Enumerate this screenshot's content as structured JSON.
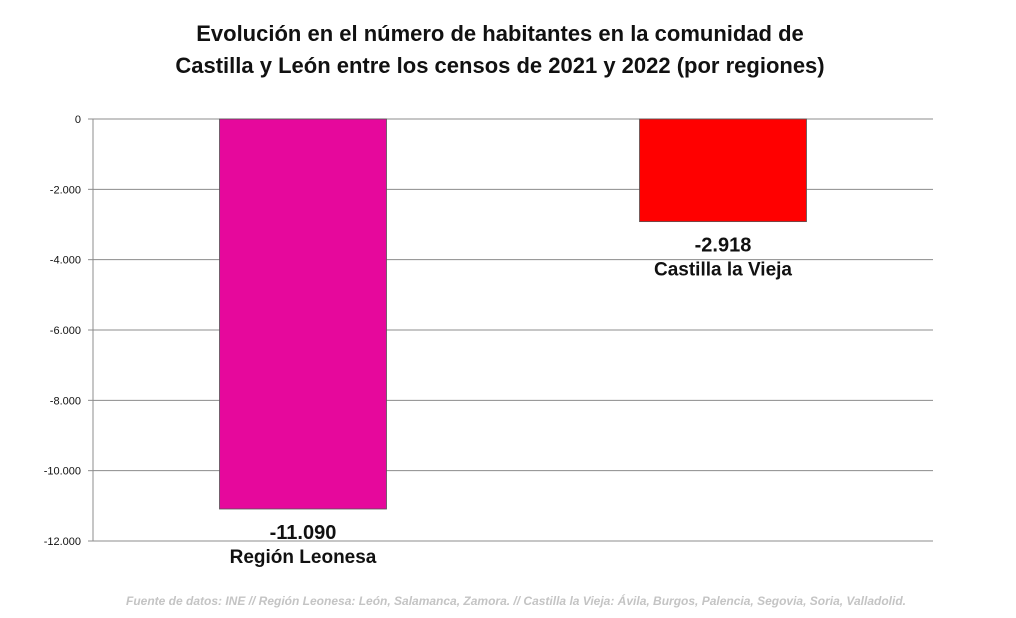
{
  "title_lines": [
    "Evolución en el número de habitantes en la comunidad de",
    "Castilla y León entre los censos de 2021 y 2022 (por regiones)"
  ],
  "source": "Fuente de datos: INE  //  Región Leonesa: León, Salamanca, Zamora.  //  Castilla la Vieja: Ávila, Burgos, Palencia, Segovia, Soria, Valladolid.",
  "chart_data": {
    "type": "bar",
    "title": "Evolución en el número de habitantes en la comunidad de Castilla y León entre los censos de 2021 y 2022 (por regiones)",
    "categories": [
      "Región Leonesa",
      "Castilla la Vieja"
    ],
    "values": [
      -11090,
      -2918
    ],
    "value_labels": [
      "-11.090",
      "-2.918"
    ],
    "colors": [
      "#e6089c",
      "#ff0000"
    ],
    "ylim": [
      -12000,
      0
    ],
    "yticks": [
      0,
      -2000,
      -4000,
      -6000,
      -8000,
      -10000,
      -12000
    ],
    "ytick_labels": [
      "0",
      "-2.000",
      "-4.000",
      "-6.000",
      "-8.000",
      "-10.000",
      "-12.000"
    ],
    "grid": true,
    "legend": "none",
    "xlabel": "",
    "ylabel": ""
  }
}
